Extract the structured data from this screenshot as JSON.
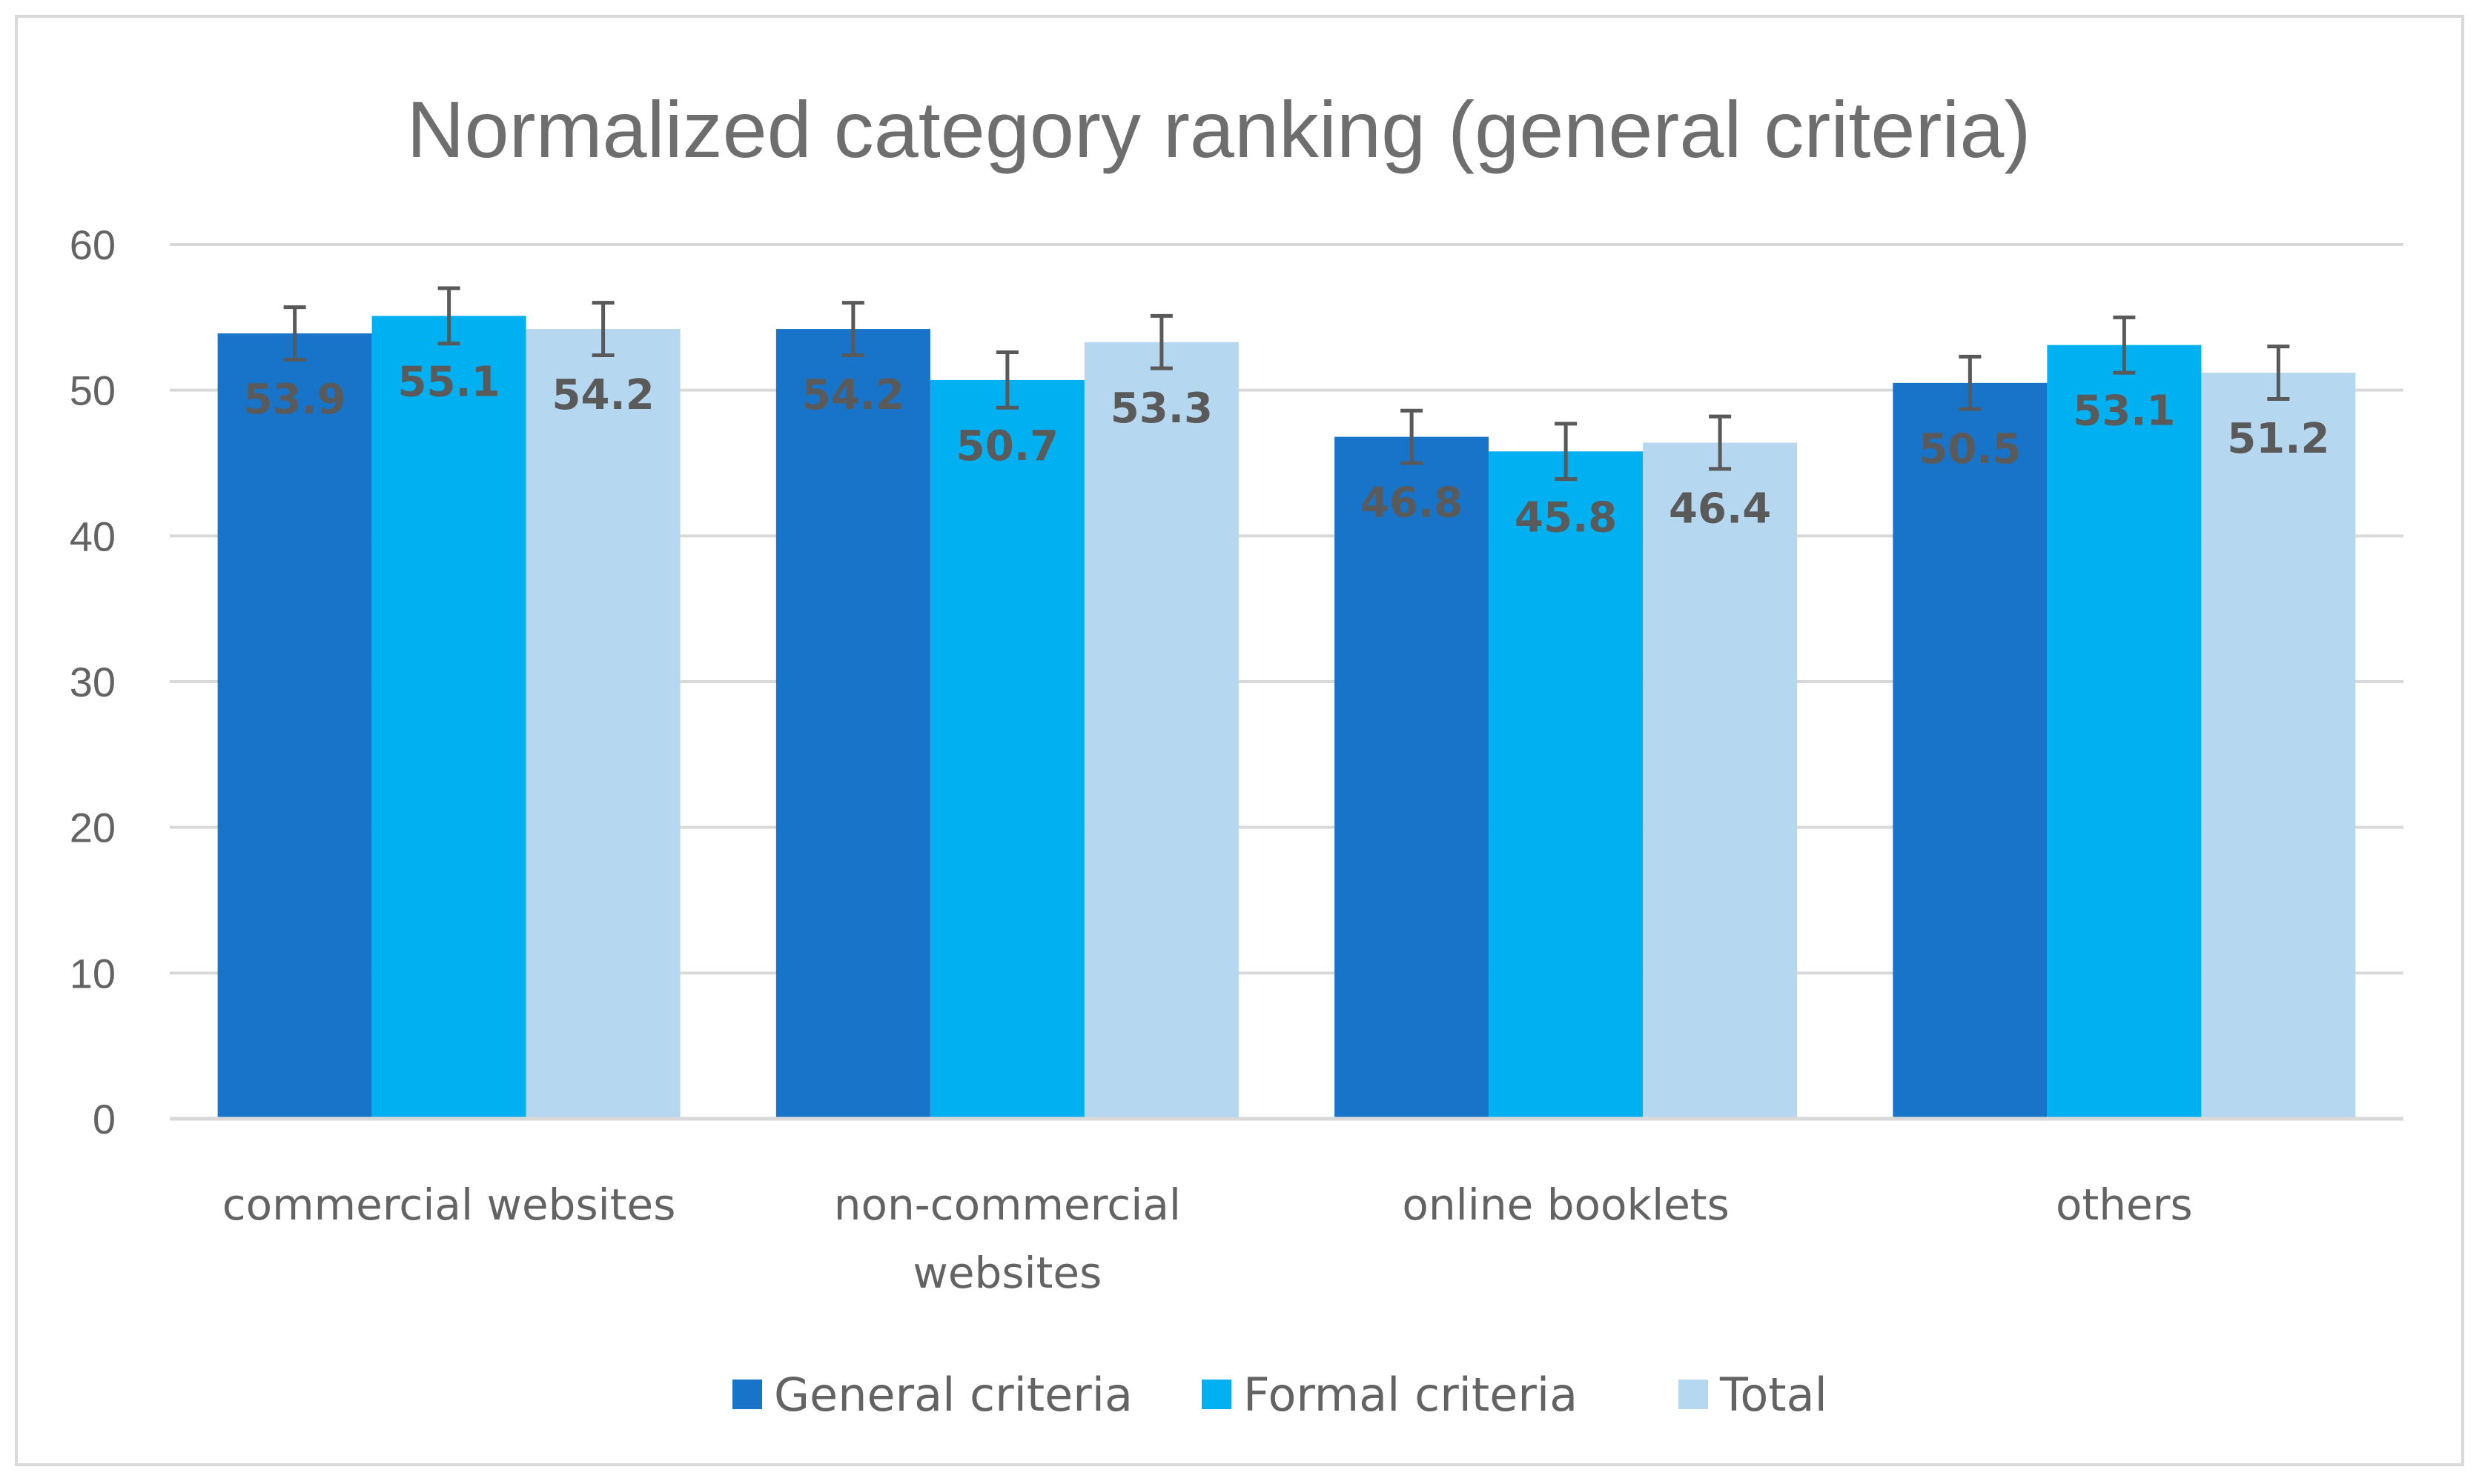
{
  "chart_data": {
    "type": "bar",
    "title": "Normalized category ranking (general criteria)",
    "xlabel": "",
    "ylabel": "",
    "ylim": [
      0,
      60
    ],
    "yticks": [
      "0",
      "10",
      "20",
      "30",
      "40",
      "50",
      "60"
    ],
    "grid": true,
    "legend_position": "bottom",
    "categories": [
      [
        "commercial websites"
      ],
      [
        "non-commercial",
        "websites"
      ],
      [
        "online booklets"
      ],
      [
        "others"
      ]
    ],
    "series": [
      {
        "name": "General criteria",
        "color": "#1874c8",
        "values": [
          53.9,
          54.2,
          46.8,
          50.5
        ],
        "labels": [
          "53.9",
          "54.2",
          "46.8",
          "50.5"
        ],
        "error": 1.8
      },
      {
        "name": "Formal criteria",
        "color": "#00b0f0",
        "values": [
          55.1,
          50.7,
          45.8,
          53.1
        ],
        "labels": [
          "55.1",
          "50.7",
          "45.8",
          "53.1"
        ],
        "error": 1.9
      },
      {
        "name": "Total",
        "color": "#b5d8f0",
        "values": [
          54.2,
          53.3,
          46.4,
          51.2
        ],
        "labels": [
          "54.2",
          "53.3",
          "46.4",
          "51.2"
        ],
        "error": 1.8
      }
    ]
  }
}
